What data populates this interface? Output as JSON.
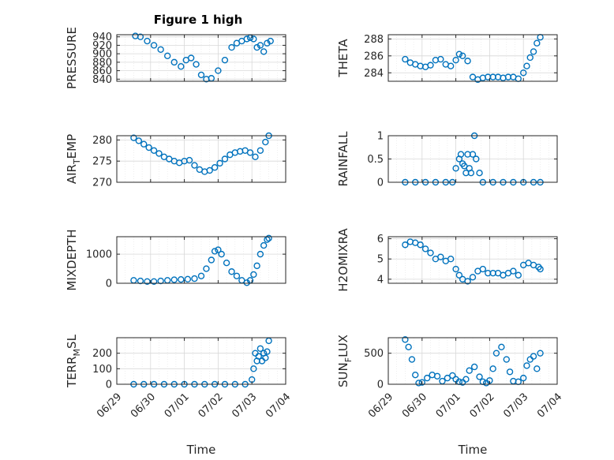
{
  "figure_title": "Figure 1 high",
  "x_tick_labels": [
    "06/29",
    "06/30",
    "07/01",
    "07/02",
    "07/03",
    "07/04"
  ],
  "marker_color": "#0072BD",
  "chart_data": [
    {
      "type": "scatter",
      "title": "Figure 1 high",
      "ylabel": "PRESSURE",
      "xlabel": "",
      "xlim": [
        0,
        5
      ],
      "ylim": [
        835,
        945
      ],
      "grid": true,
      "yticks": [
        840,
        860,
        880,
        900,
        920,
        940
      ],
      "x": [
        0.55,
        0.7,
        0.9,
        1.1,
        1.3,
        1.5,
        1.7,
        1.9,
        2.05,
        2.2,
        2.35,
        2.5,
        2.65,
        2.8,
        3.0,
        3.2,
        3.4,
        3.55,
        3.7,
        3.85,
        3.95,
        4.05,
        4.15,
        4.25,
        4.35,
        4.45,
        4.55
      ],
      "y": [
        942,
        940,
        930,
        920,
        910,
        895,
        880,
        870,
        885,
        890,
        875,
        850,
        840,
        842,
        860,
        885,
        915,
        925,
        930,
        935,
        938,
        935,
        915,
        920,
        905,
        925,
        930
      ]
    },
    {
      "type": "scatter",
      "title": "",
      "ylabel": "THETA",
      "xlabel": "",
      "xlim": [
        0,
        5
      ],
      "ylim": [
        283,
        288.5
      ],
      "grid": true,
      "yticks": [
        284,
        286,
        288
      ],
      "x": [
        0.5,
        0.65,
        0.8,
        0.95,
        1.1,
        1.25,
        1.4,
        1.55,
        1.7,
        1.85,
        2.0,
        2.1,
        2.2,
        2.35,
        2.5,
        2.65,
        2.8,
        2.95,
        3.1,
        3.25,
        3.4,
        3.55,
        3.7,
        3.85,
        4.0,
        4.1,
        4.2,
        4.3,
        4.4,
        4.5
      ],
      "y": [
        285.6,
        285.2,
        285.0,
        284.8,
        284.7,
        284.9,
        285.5,
        285.6,
        285.0,
        284.8,
        285.5,
        286.2,
        286.0,
        285.4,
        283.5,
        283.2,
        283.4,
        283.5,
        283.5,
        283.5,
        283.4,
        283.5,
        283.5,
        283.3,
        284.0,
        284.8,
        285.8,
        286.5,
        287.5,
        288.2
      ]
    },
    {
      "type": "scatter",
      "title": "",
      "ylabel": "AIR_TEMP",
      "xlabel": "",
      "xlim": [
        0,
        5
      ],
      "ylim": [
        270,
        281
      ],
      "grid": true,
      "yticks": [
        270,
        275,
        280
      ],
      "x": [
        0.5,
        0.65,
        0.8,
        0.95,
        1.1,
        1.25,
        1.4,
        1.55,
        1.7,
        1.85,
        2.0,
        2.15,
        2.3,
        2.45,
        2.6,
        2.75,
        2.9,
        3.05,
        3.2,
        3.35,
        3.5,
        3.65,
        3.8,
        3.95,
        4.1,
        4.25,
        4.4,
        4.5
      ],
      "y": [
        280.5,
        279.8,
        279.0,
        278.2,
        277.5,
        276.8,
        276.0,
        275.5,
        275.0,
        274.6,
        275.0,
        275.2,
        274.0,
        273.0,
        272.5,
        272.8,
        273.5,
        274.5,
        275.5,
        276.5,
        277.0,
        277.3,
        277.5,
        277.0,
        276.0,
        277.5,
        279.5,
        281.0
      ]
    },
    {
      "type": "scatter",
      "title": "",
      "ylabel": "RAINFALL",
      "xlabel": "",
      "xlim": [
        0,
        5
      ],
      "ylim": [
        0,
        1
      ],
      "grid": true,
      "yticks": [
        0,
        0.5,
        1
      ],
      "x": [
        0.5,
        0.8,
        1.1,
        1.4,
        1.7,
        1.9,
        2.0,
        2.1,
        2.15,
        2.2,
        2.25,
        2.3,
        2.35,
        2.4,
        2.45,
        2.5,
        2.55,
        2.6,
        2.7,
        2.8,
        3.1,
        3.4,
        3.7,
        4.0,
        4.3,
        4.5
      ],
      "y": [
        0,
        0,
        0,
        0,
        0,
        0,
        0.3,
        0.5,
        0.6,
        0.4,
        0.35,
        0.2,
        0.6,
        0.3,
        0.2,
        0.6,
        1.0,
        0.5,
        0.2,
        0,
        0,
        0,
        0,
        0,
        0,
        0
      ]
    },
    {
      "type": "scatter",
      "title": "",
      "ylabel": "MIXDEPTH",
      "xlabel": "",
      "xlim": [
        0,
        5
      ],
      "ylim": [
        0,
        1600
      ],
      "grid": true,
      "yticks": [
        0,
        1000
      ],
      "x": [
        0.5,
        0.7,
        0.9,
        1.1,
        1.3,
        1.5,
        1.7,
        1.9,
        2.1,
        2.3,
        2.5,
        2.65,
        2.8,
        2.9,
        3.0,
        3.1,
        3.25,
        3.4,
        3.55,
        3.7,
        3.85,
        3.95,
        4.05,
        4.15,
        4.25,
        4.35,
        4.45,
        4.5
      ],
      "y": [
        100,
        80,
        60,
        60,
        80,
        100,
        120,
        130,
        140,
        160,
        250,
        500,
        800,
        1100,
        1150,
        1000,
        700,
        400,
        250,
        100,
        20,
        100,
        300,
        600,
        1000,
        1300,
        1500,
        1550
      ]
    },
    {
      "type": "scatter",
      "title": "",
      "ylabel": "H2OMIXRA",
      "xlabel": "",
      "xlim": [
        0,
        5
      ],
      "ylim": [
        3.8,
        6.1
      ],
      "grid": true,
      "yticks": [
        4,
        5,
        6
      ],
      "x": [
        0.5,
        0.65,
        0.8,
        0.95,
        1.1,
        1.25,
        1.4,
        1.55,
        1.7,
        1.85,
        2.0,
        2.1,
        2.2,
        2.35,
        2.5,
        2.65,
        2.8,
        2.95,
        3.1,
        3.25,
        3.4,
        3.55,
        3.7,
        3.85,
        4.0,
        4.15,
        4.3,
        4.45,
        4.5
      ],
      "y": [
        5.7,
        5.85,
        5.8,
        5.7,
        5.5,
        5.3,
        5.0,
        5.1,
        4.9,
        5.0,
        4.5,
        4.2,
        4.0,
        3.9,
        4.1,
        4.4,
        4.5,
        4.3,
        4.3,
        4.3,
        4.2,
        4.3,
        4.4,
        4.2,
        4.7,
        4.8,
        4.7,
        4.6,
        4.5
      ]
    },
    {
      "type": "scatter",
      "title": "",
      "ylabel": "TERR_MSL",
      "xlabel": "Time",
      "xlim": [
        0,
        5
      ],
      "ylim": [
        0,
        300
      ],
      "grid": true,
      "yticks": [
        0,
        100,
        200
      ],
      "x": [
        0.5,
        0.8,
        1.1,
        1.4,
        1.7,
        2.0,
        2.3,
        2.6,
        2.9,
        3.2,
        3.5,
        3.8,
        4.0,
        4.05,
        4.1,
        4.15,
        4.2,
        4.25,
        4.3,
        4.35,
        4.4,
        4.45,
        4.5
      ],
      "y": [
        0,
        0,
        0,
        0,
        0,
        0,
        0,
        0,
        0,
        0,
        0,
        0,
        30,
        100,
        200,
        150,
        180,
        230,
        150,
        200,
        170,
        210,
        280
      ]
    },
    {
      "type": "scatter",
      "title": "",
      "ylabel": "SUN_FLUX",
      "xlabel": "Time",
      "xlim": [
        0,
        5
      ],
      "ylim": [
        0,
        750
      ],
      "grid": true,
      "yticks": [
        0,
        500
      ],
      "x": [
        0.5,
        0.6,
        0.7,
        0.8,
        0.9,
        1.0,
        1.15,
        1.3,
        1.45,
        1.6,
        1.75,
        1.9,
        2.0,
        2.1,
        2.2,
        2.3,
        2.4,
        2.55,
        2.7,
        2.8,
        2.9,
        3.0,
        3.1,
        3.2,
        3.35,
        3.5,
        3.6,
        3.7,
        3.85,
        4.0,
        4.1,
        4.2,
        4.3,
        4.4,
        4.5
      ],
      "y": [
        720,
        600,
        400,
        150,
        20,
        30,
        100,
        150,
        130,
        50,
        100,
        140,
        80,
        40,
        30,
        80,
        220,
        280,
        120,
        40,
        20,
        60,
        250,
        500,
        600,
        400,
        200,
        50,
        40,
        100,
        300,
        400,
        450,
        250,
        500
      ]
    }
  ]
}
